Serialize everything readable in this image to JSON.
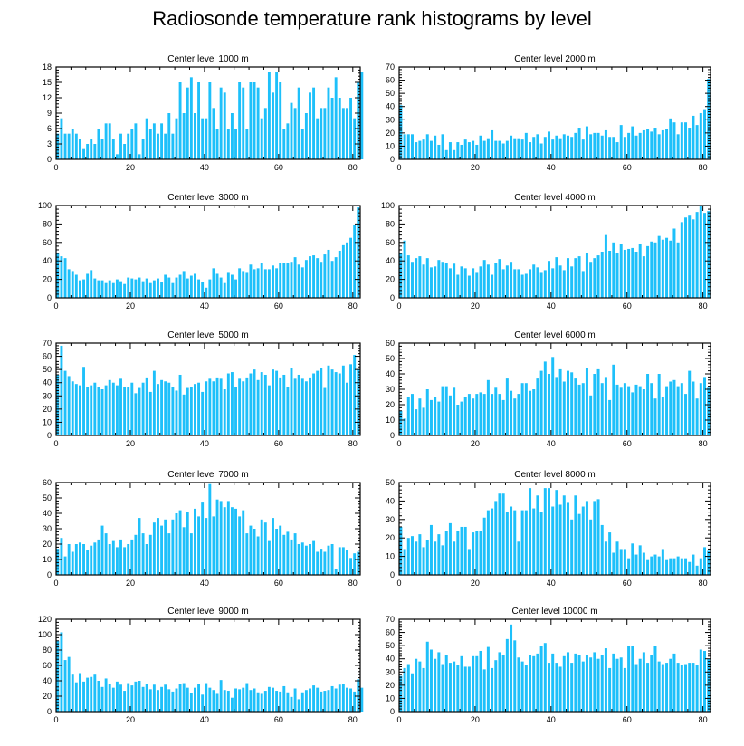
{
  "title": "Radiosonde temperature rank histograms by level",
  "colors": {
    "bar": "#1ec0fa",
    "axis": "#000000"
  },
  "chart_data": [
    {
      "type": "bar",
      "title": "Center level 1000 m",
      "xlim": [
        0,
        82
      ],
      "ylim": [
        0,
        18
      ],
      "xticks": [
        0,
        20,
        40,
        60,
        80
      ],
      "yticks": [
        0,
        3,
        6,
        9,
        12,
        15,
        18
      ],
      "values": [
        5,
        8,
        5,
        5,
        6,
        5,
        4,
        2,
        3,
        4,
        3,
        6,
        4,
        7,
        7,
        4,
        1,
        5,
        3,
        5,
        6,
        7,
        1,
        4,
        8,
        6,
        7,
        5,
        7,
        5,
        9,
        5,
        8,
        15,
        9,
        14,
        16,
        9,
        15,
        8,
        8,
        15,
        10,
        6,
        14,
        13,
        6,
        9,
        6,
        15,
        14,
        6,
        15,
        15,
        14,
        8,
        10,
        17,
        13,
        17,
        15,
        6,
        7,
        11,
        10,
        14,
        6,
        9,
        13,
        14,
        8,
        10,
        10,
        14,
        12,
        16,
        12,
        10,
        10,
        12,
        8,
        15,
        17
      ]
    },
    {
      "type": "bar",
      "title": "Center level 2000 m",
      "xlim": [
        0,
        82
      ],
      "ylim": [
        0,
        70
      ],
      "xticks": [
        0,
        20,
        40,
        60,
        80
      ],
      "yticks": [
        0,
        10,
        20,
        30,
        40,
        50,
        60,
        70
      ],
      "values": [
        41,
        19,
        19,
        19,
        13,
        14,
        15,
        19,
        14,
        18,
        11,
        19,
        7,
        13,
        7,
        13,
        11,
        15,
        13,
        14,
        11,
        18,
        14,
        16,
        22,
        14,
        14,
        12,
        14,
        18,
        16,
        16,
        15,
        20,
        13,
        17,
        19,
        12,
        17,
        21,
        15,
        18,
        16,
        19,
        18,
        17,
        20,
        24,
        15,
        25,
        19,
        20,
        20,
        18,
        22,
        17,
        17,
        13,
        26,
        17,
        20,
        25,
        18,
        20,
        22,
        23,
        21,
        24,
        19,
        22,
        23,
        31,
        28,
        19,
        28,
        28,
        24,
        33,
        26,
        35,
        38,
        61
      ]
    },
    {
      "type": "bar",
      "title": "Center level 3000 m",
      "xlim": [
        0,
        82
      ],
      "ylim": [
        0,
        100
      ],
      "xticks": [
        0,
        20,
        40,
        60,
        80
      ],
      "yticks": [
        0,
        20,
        40,
        60,
        80,
        100
      ],
      "values": [
        49,
        45,
        43,
        31,
        29,
        25,
        19,
        20,
        26,
        30,
        21,
        19,
        19,
        16,
        19,
        16,
        20,
        18,
        15,
        22,
        21,
        20,
        22,
        18,
        21,
        16,
        19,
        21,
        17,
        25,
        22,
        16,
        22,
        25,
        29,
        21,
        24,
        26,
        20,
        17,
        11,
        20,
        32,
        26,
        22,
        16,
        28,
        25,
        20,
        32,
        29,
        28,
        36,
        31,
        32,
        38,
        31,
        31,
        35,
        32,
        38,
        38,
        38,
        39,
        44,
        36,
        33,
        41,
        45,
        46,
        43,
        39,
        47,
        52,
        40,
        44,
        51,
        57,
        60,
        65,
        79,
        98
      ]
    },
    {
      "type": "bar",
      "title": "Center level 4000 m",
      "xlim": [
        0,
        82
      ],
      "ylim": [
        0,
        100
      ],
      "xticks": [
        0,
        20,
        40,
        60,
        80
      ],
      "yticks": [
        0,
        20,
        40,
        60,
        80,
        100
      ],
      "values": [
        49,
        62,
        46,
        39,
        43,
        45,
        36,
        43,
        33,
        34,
        41,
        39,
        38,
        32,
        37,
        25,
        34,
        32,
        24,
        32,
        28,
        34,
        41,
        36,
        25,
        38,
        42,
        31,
        35,
        39,
        31,
        31,
        25,
        26,
        31,
        36,
        33,
        28,
        30,
        40,
        32,
        44,
        35,
        30,
        43,
        34,
        43,
        45,
        29,
        49,
        39,
        43,
        46,
        50,
        68,
        51,
        60,
        49,
        58,
        52,
        53,
        54,
        50,
        58,
        45,
        56,
        61,
        60,
        67,
        63,
        65,
        62,
        75,
        60,
        82,
        87,
        89,
        85,
        93,
        99,
        92,
        94
      ]
    },
    {
      "type": "bar",
      "title": "Center level 5000 m",
      "xlim": [
        0,
        82
      ],
      "ylim": [
        0,
        70
      ],
      "xticks": [
        0,
        20,
        40,
        60,
        80
      ],
      "yticks": [
        0,
        10,
        20,
        30,
        40,
        50,
        60,
        70
      ],
      "values": [
        46,
        68,
        49,
        45,
        41,
        39,
        38,
        52,
        37,
        38,
        40,
        37,
        35,
        38,
        42,
        40,
        38,
        43,
        37,
        37,
        40,
        32,
        36,
        40,
        44,
        33,
        49,
        39,
        42,
        41,
        40,
        37,
        34,
        46,
        31,
        36,
        37,
        39,
        40,
        33,
        41,
        43,
        41,
        44,
        43,
        35,
        47,
        48,
        37,
        43,
        41,
        44,
        47,
        50,
        42,
        48,
        46,
        38,
        50,
        49,
        44,
        46,
        37,
        51,
        43,
        46,
        43,
        41,
        44,
        47,
        49,
        51,
        36,
        53,
        50,
        48,
        47,
        53,
        40,
        54,
        61,
        50
      ]
    },
    {
      "type": "bar",
      "title": "Center level 6000 m",
      "xlim": [
        0,
        82
      ],
      "ylim": [
        0,
        60
      ],
      "xticks": [
        0,
        20,
        40,
        60,
        80
      ],
      "yticks": [
        0,
        10,
        20,
        30,
        40,
        50,
        60
      ],
      "values": [
        16,
        11,
        25,
        27,
        17,
        24,
        18,
        30,
        23,
        25,
        22,
        32,
        32,
        26,
        31,
        20,
        22,
        25,
        27,
        24,
        27,
        28,
        27,
        36,
        27,
        31,
        27,
        23,
        37,
        29,
        24,
        27,
        34,
        34,
        29,
        30,
        37,
        42,
        48,
        40,
        51,
        38,
        43,
        35,
        42,
        41,
        37,
        33,
        34,
        44,
        26,
        40,
        43,
        34,
        38,
        23,
        46,
        33,
        31,
        34,
        32,
        28,
        33,
        32,
        30,
        40,
        34,
        24,
        40,
        25,
        32,
        35,
        36,
        32,
        34,
        27,
        42,
        35,
        24,
        34,
        38,
        31
      ]
    },
    {
      "type": "bar",
      "title": "Center level 7000 m",
      "xlim": [
        0,
        82
      ],
      "ylim": [
        0,
        60
      ],
      "xticks": [
        0,
        20,
        40,
        60,
        80
      ],
      "yticks": [
        0,
        10,
        20,
        30,
        40,
        50,
        60
      ],
      "values": [
        17,
        24,
        12,
        20,
        15,
        20,
        21,
        20,
        16,
        19,
        21,
        23,
        32,
        27,
        20,
        22,
        18,
        23,
        18,
        20,
        23,
        26,
        37,
        27,
        20,
        26,
        34,
        37,
        32,
        36,
        27,
        36,
        40,
        42,
        31,
        41,
        27,
        43,
        38,
        47,
        37,
        59,
        38,
        49,
        48,
        44,
        48,
        44,
        43,
        38,
        42,
        27,
        32,
        30,
        25,
        36,
        34,
        22,
        37,
        30,
        32,
        26,
        28,
        23,
        27,
        20,
        21,
        19,
        20,
        22,
        15,
        17,
        15,
        19,
        20,
        4,
        18,
        18,
        16,
        11,
        14,
        15
      ]
    },
    {
      "type": "bar",
      "title": "Center level 8000 m",
      "xlim": [
        0,
        82
      ],
      "ylim": [
        0,
        50
      ],
      "xticks": [
        0,
        20,
        40,
        60,
        80
      ],
      "yticks": [
        0,
        10,
        20,
        30,
        40,
        50
      ],
      "values": [
        26,
        14,
        20,
        21,
        18,
        22,
        15,
        19,
        27,
        18,
        22,
        16,
        24,
        28,
        18,
        24,
        26,
        26,
        14,
        23,
        24,
        24,
        31,
        35,
        36,
        40,
        44,
        44,
        34,
        37,
        35,
        18,
        35,
        35,
        47,
        36,
        43,
        34,
        47,
        47,
        37,
        46,
        38,
        43,
        39,
        30,
        43,
        33,
        37,
        40,
        30,
        40,
        41,
        27,
        18,
        23,
        12,
        18,
        14,
        14,
        9,
        17,
        11,
        16,
        12,
        8,
        10,
        11,
        10,
        14,
        8,
        9,
        9,
        10,
        9,
        9,
        7,
        11,
        5,
        9,
        15,
        13
      ]
    },
    {
      "type": "bar",
      "title": "Center level 9000 m",
      "xlim": [
        0,
        82
      ],
      "ylim": [
        0,
        120
      ],
      "xticks": [
        0,
        20,
        40,
        60,
        80
      ],
      "yticks": [
        0,
        20,
        40,
        60,
        80,
        100,
        120
      ],
      "values": [
        92,
        103,
        67,
        71,
        48,
        38,
        50,
        39,
        44,
        45,
        48,
        40,
        32,
        43,
        36,
        31,
        39,
        35,
        27,
        37,
        34,
        39,
        40,
        32,
        36,
        29,
        35,
        28,
        32,
        35,
        29,
        26,
        30,
        36,
        37,
        31,
        24,
        31,
        36,
        22,
        37,
        31,
        28,
        23,
        41,
        28,
        27,
        18,
        30,
        29,
        31,
        37,
        28,
        30,
        25,
        23,
        27,
        32,
        31,
        27,
        26,
        33,
        25,
        19,
        30,
        16,
        25,
        28,
        30,
        34,
        31,
        26,
        27,
        28,
        33,
        30,
        35,
        36,
        31,
        30,
        26,
        42,
        31
      ]
    },
    {
      "type": "bar",
      "title": "Center level 10000 m",
      "xlim": [
        0,
        82
      ],
      "ylim": [
        0,
        70
      ],
      "xticks": [
        0,
        20,
        40,
        60,
        80
      ],
      "yticks": [
        0,
        10,
        20,
        30,
        40,
        50,
        60,
        70
      ],
      "values": [
        27,
        33,
        36,
        29,
        40,
        38,
        33,
        53,
        47,
        40,
        45,
        36,
        43,
        37,
        38,
        35,
        42,
        34,
        34,
        42,
        42,
        46,
        32,
        49,
        33,
        39,
        45,
        43,
        55,
        66,
        54,
        41,
        38,
        35,
        43,
        42,
        44,
        50,
        52,
        37,
        44,
        37,
        34,
        42,
        45,
        37,
        44,
        43,
        38,
        43,
        41,
        45,
        40,
        43,
        48,
        33,
        44,
        40,
        41,
        33,
        50,
        50,
        36,
        40,
        45,
        37,
        43,
        50,
        38,
        36,
        37,
        40,
        44,
        37,
        35,
        36,
        37,
        37,
        35,
        47,
        46,
        40
      ]
    }
  ]
}
